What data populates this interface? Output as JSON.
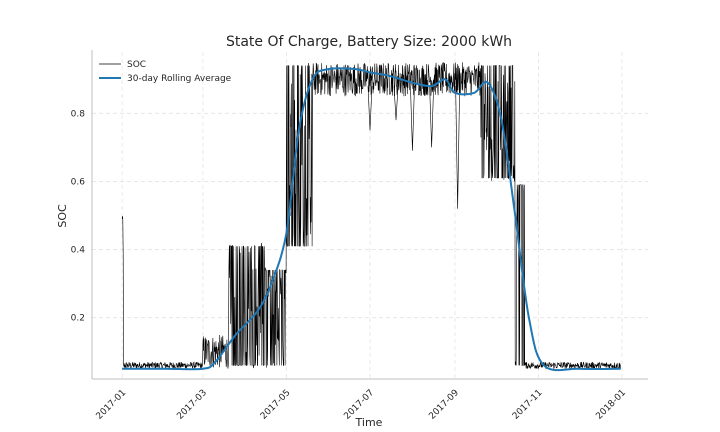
{
  "chart_data": {
    "type": "line",
    "title": "State Of Charge, Battery Size: 2000 kWh",
    "xlabel": "Time",
    "ylabel": "SOC",
    "xlim": [
      "2016-12-10",
      "2018-01-20"
    ],
    "ylim": [
      0.02,
      0.98
    ],
    "x_ticks": [
      "2017-01",
      "2017-03",
      "2017-05",
      "2017-07",
      "2017-09",
      "2017-11",
      "2018-01"
    ],
    "y_ticks": [
      "0.2",
      "0.4",
      "0.6",
      "0.8"
    ],
    "grid": true,
    "legend_position": "top-left",
    "series": [
      {
        "name": "SOC",
        "color": "#000000",
        "style": "thin noisy hourly trace",
        "segments": [
          {
            "start": "2017-01-01",
            "end": "2017-01-02",
            "low": 0.1,
            "high": 0.5
          },
          {
            "start": "2017-01-02",
            "end": "2017-03-01",
            "low": 0.05,
            "high": 0.07
          },
          {
            "start": "2017-03-01",
            "end": "2017-03-20",
            "low": 0.05,
            "high": 0.15
          },
          {
            "start": "2017-03-20",
            "end": "2017-04-15",
            "low": 0.05,
            "high": 0.42
          },
          {
            "start": "2017-04-15",
            "end": "2017-05-01",
            "low": 0.05,
            "high": 0.35
          },
          {
            "start": "2017-05-01",
            "end": "2017-05-20",
            "low": 0.4,
            "high": 0.95
          },
          {
            "start": "2017-05-20",
            "end": "2017-09-20",
            "low": 0.85,
            "high": 0.95
          },
          {
            "start": "2017-09-20",
            "end": "2017-10-15",
            "low": 0.6,
            "high": 0.95
          },
          {
            "start": "2017-10-15",
            "end": "2017-10-22",
            "low": 0.05,
            "high": 0.6
          },
          {
            "start": "2017-10-22",
            "end": "2017-12-31",
            "low": 0.05,
            "high": 0.07
          }
        ],
        "dips": [
          {
            "date": "2017-07-01",
            "value": 0.75
          },
          {
            "date": "2017-07-20",
            "value": 0.78
          },
          {
            "date": "2017-08-01",
            "value": 0.69
          },
          {
            "date": "2017-08-15",
            "value": 0.7
          },
          {
            "date": "2017-09-03",
            "value": 0.52
          }
        ]
      },
      {
        "name": "30-day Rolling Average",
        "color": "#1f77b4",
        "x": [
          "2017-01-01",
          "2017-02-01",
          "2017-03-01",
          "2017-03-10",
          "2017-03-25",
          "2017-04-10",
          "2017-04-20",
          "2017-05-01",
          "2017-05-10",
          "2017-05-20",
          "2017-06-01",
          "2017-06-20",
          "2017-07-01",
          "2017-07-15",
          "2017-08-01",
          "2017-08-15",
          "2017-08-25",
          "2017-09-01",
          "2017-09-15",
          "2017-09-25",
          "2017-10-05",
          "2017-10-15",
          "2017-10-25",
          "2017-11-05",
          "2017-12-01",
          "2017-12-31"
        ],
        "y": [
          0.05,
          0.05,
          0.05,
          0.07,
          0.15,
          0.22,
          0.3,
          0.45,
          0.75,
          0.9,
          0.93,
          0.93,
          0.92,
          0.91,
          0.89,
          0.88,
          0.9,
          0.86,
          0.86,
          0.89,
          0.78,
          0.5,
          0.2,
          0.06,
          0.05,
          0.05
        ]
      }
    ]
  }
}
